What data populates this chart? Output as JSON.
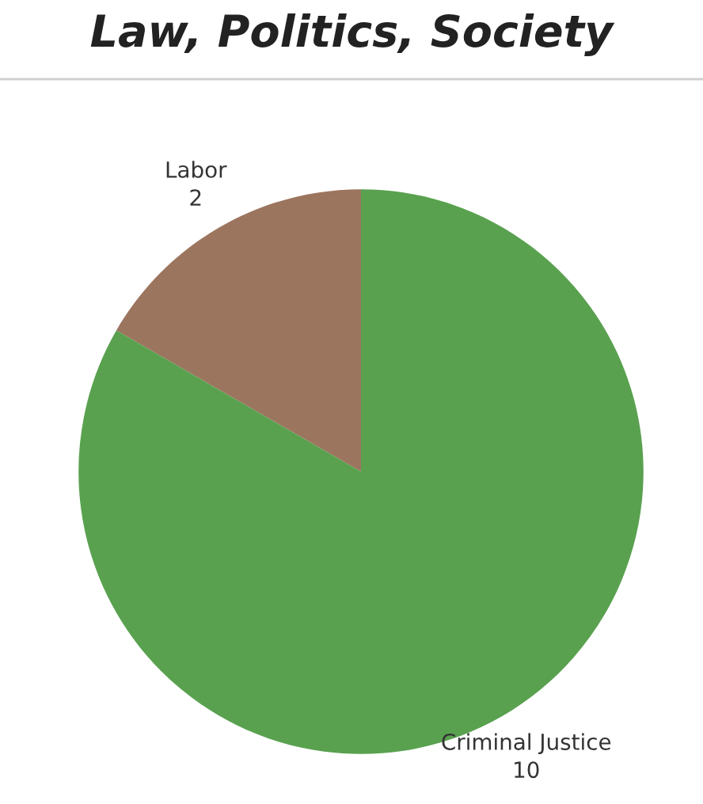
{
  "chart_data": {
    "type": "pie",
    "title": "Law, Politics, Society",
    "categories": [
      "Labor",
      "Criminal Justice"
    ],
    "values": [
      2,
      10
    ],
    "colors": [
      "#9c755f",
      "#59a14f"
    ],
    "data_labels": true
  }
}
